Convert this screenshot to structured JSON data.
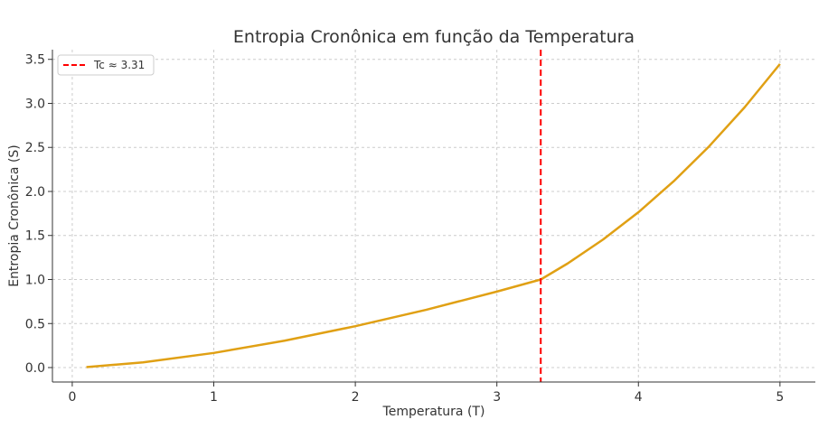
{
  "chart_data": {
    "type": "line",
    "title": "Entropia Cronônica em função da Temperatura",
    "xlabel": "Temperatura (T)",
    "ylabel": "Entropia Cronônica (S)",
    "xlim": [
      -0.14,
      5.25
    ],
    "ylim": [
      -0.164,
      3.61
    ],
    "xticks": [
      "0",
      "1",
      "2",
      "3",
      "4",
      "5"
    ],
    "yticks": [
      "0.0",
      "0.5",
      "1.0",
      "1.5",
      "2.0",
      "2.5",
      "3.0",
      "3.5"
    ],
    "grid": true,
    "legend_position": "top-left",
    "series": [
      {
        "color": "#e0a014",
        "x": [
          0.1,
          0.5,
          1,
          1.5,
          2,
          2.5,
          3,
          3.31,
          3.5,
          3.75,
          4,
          4.25,
          4.5,
          4.75,
          5
        ],
        "y": [
          0.005,
          0.059,
          0.166,
          0.305,
          0.47,
          0.656,
          0.863,
          1.0,
          1.182,
          1.454,
          1.764,
          2.117,
          2.513,
          2.955,
          3.447
        ]
      }
    ],
    "vline": {
      "x": 3.31,
      "label": "Tc ≈ 3.31",
      "color": "#ff0000",
      "style": "dashed"
    }
  }
}
